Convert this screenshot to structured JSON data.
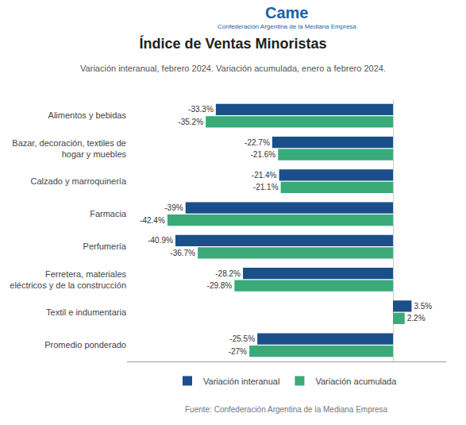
{
  "chart_data": {
    "type": "bar",
    "orientation": "horizontal",
    "title": "Índice de Ventas Minoristas",
    "subtitle": "Variación interanual, febrero 2024. Variación acumulada, enero a febrero 2024.",
    "annotations": [
      "Came",
      "Confederación Argentina de la Mediana Empresa",
      "Fuente: Confederación Argentina de la Mediana Empresa"
    ],
    "categories": [
      "Alimentos y bebidas",
      "Bazar, decoración, textiles de\nhogar y muebles",
      "Calzado y marroquinería",
      "Farmacia",
      "Perfumería",
      "Ferretera, materiales\neléctricos y de la construcción",
      "Textil e indumentaria",
      "Promedio ponderado"
    ],
    "series": [
      {
        "name": "Variación interanual",
        "color": "#1a4f8a",
        "values": [
          -33.3,
          -22.7,
          -21.4,
          -39.0,
          -40.9,
          -28.2,
          3.5,
          -25.5
        ],
        "value_labels": [
          "-33.3%",
          "-22.7%",
          "-21.4%",
          "-39%",
          "-40.9%",
          "-28.2%",
          "3.5%",
          "-25.5%"
        ]
      },
      {
        "name": "Variación acumulada",
        "color": "#3aaa78",
        "values": [
          -35.2,
          -21.6,
          -21.1,
          -42.4,
          -36.7,
          -29.8,
          2.2,
          -27.0
        ],
        "value_labels": [
          "-35.2%",
          "-21.6%",
          "-21.1%",
          "-42.4%",
          "-36.7%",
          "-29.8%",
          "2.2%",
          "-27%"
        ]
      }
    ],
    "xlim": [
      -50,
      10
    ],
    "data_labels": true,
    "tick_labels": "y",
    "grid": false,
    "legend": "bottom"
  }
}
